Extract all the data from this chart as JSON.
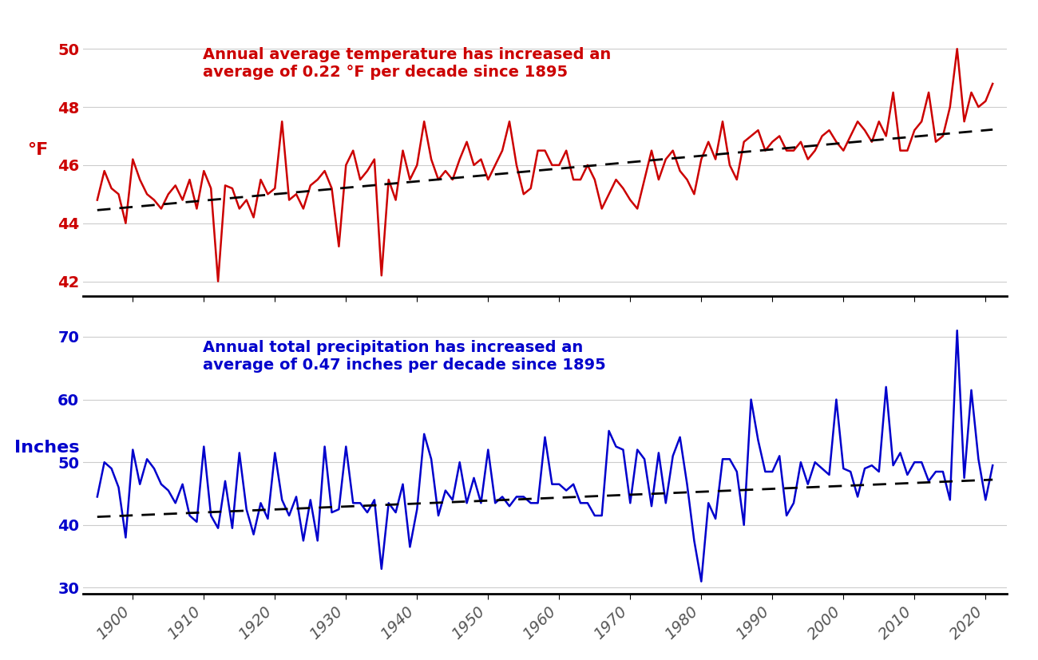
{
  "years": [
    1895,
    1896,
    1897,
    1898,
    1899,
    1900,
    1901,
    1902,
    1903,
    1904,
    1905,
    1906,
    1907,
    1908,
    1909,
    1910,
    1911,
    1912,
    1913,
    1914,
    1915,
    1916,
    1917,
    1918,
    1919,
    1920,
    1921,
    1922,
    1923,
    1924,
    1925,
    1926,
    1927,
    1928,
    1929,
    1930,
    1931,
    1932,
    1933,
    1934,
    1935,
    1936,
    1937,
    1938,
    1939,
    1940,
    1941,
    1942,
    1943,
    1944,
    1945,
    1946,
    1947,
    1948,
    1949,
    1950,
    1951,
    1952,
    1953,
    1954,
    1955,
    1956,
    1957,
    1958,
    1959,
    1960,
    1961,
    1962,
    1963,
    1964,
    1965,
    1966,
    1967,
    1968,
    1969,
    1970,
    1971,
    1972,
    1973,
    1974,
    1975,
    1976,
    1977,
    1978,
    1979,
    1980,
    1981,
    1982,
    1983,
    1984,
    1985,
    1986,
    1987,
    1988,
    1989,
    1990,
    1991,
    1992,
    1993,
    1994,
    1995,
    1996,
    1997,
    1998,
    1999,
    2000,
    2001,
    2002,
    2003,
    2004,
    2005,
    2006,
    2007,
    2008,
    2009,
    2010,
    2011,
    2012,
    2013,
    2014,
    2015,
    2016,
    2017,
    2018,
    2019,
    2020,
    2021
  ],
  "temp": [
    44.8,
    45.8,
    45.2,
    45.0,
    44.0,
    46.2,
    45.5,
    45.0,
    44.8,
    44.5,
    45.0,
    45.3,
    44.8,
    45.5,
    44.5,
    45.8,
    45.2,
    42.0,
    45.3,
    45.2,
    44.5,
    44.8,
    44.2,
    45.5,
    45.0,
    45.2,
    47.5,
    44.8,
    45.0,
    44.5,
    45.3,
    45.5,
    45.8,
    45.2,
    43.2,
    46.0,
    46.5,
    45.5,
    45.8,
    46.2,
    42.2,
    45.5,
    44.8,
    46.5,
    45.5,
    46.0,
    47.5,
    46.2,
    45.5,
    45.8,
    45.5,
    46.2,
    46.8,
    46.0,
    46.2,
    45.5,
    46.0,
    46.5,
    47.5,
    46.0,
    45.0,
    45.2,
    46.5,
    46.5,
    46.0,
    46.0,
    46.5,
    45.5,
    45.5,
    46.0,
    45.5,
    44.5,
    45.0,
    45.5,
    45.2,
    44.8,
    44.5,
    45.5,
    46.5,
    45.5,
    46.2,
    46.5,
    45.8,
    45.5,
    45.0,
    46.2,
    46.8,
    46.2,
    47.5,
    46.0,
    45.5,
    46.8,
    47.0,
    47.2,
    46.5,
    46.8,
    47.0,
    46.5,
    46.5,
    46.8,
    46.2,
    46.5,
    47.0,
    47.2,
    46.8,
    46.5,
    47.0,
    47.5,
    47.2,
    46.8,
    47.5,
    47.0,
    48.5,
    46.5,
    46.5,
    47.2,
    47.5,
    48.5,
    46.8,
    47.0,
    48.0,
    50.0,
    47.5,
    48.5,
    48.0,
    48.2,
    48.8
  ],
  "precip": [
    44.5,
    50.0,
    49.0,
    46.0,
    38.0,
    52.0,
    46.5,
    50.5,
    49.0,
    46.5,
    45.5,
    43.5,
    46.5,
    41.5,
    40.5,
    52.5,
    41.5,
    39.5,
    47.0,
    39.5,
    51.5,
    42.5,
    38.5,
    43.5,
    41.0,
    51.5,
    44.0,
    41.5,
    44.5,
    37.5,
    44.0,
    37.5,
    52.5,
    42.0,
    42.5,
    52.5,
    43.5,
    43.5,
    42.0,
    44.0,
    33.0,
    43.5,
    42.0,
    46.5,
    36.5,
    42.5,
    54.5,
    50.5,
    41.5,
    45.5,
    44.0,
    50.0,
    43.5,
    47.5,
    43.5,
    52.0,
    43.5,
    44.5,
    43.0,
    44.5,
    44.5,
    43.5,
    43.5,
    54.0,
    46.5,
    46.5,
    45.5,
    46.5,
    43.5,
    43.5,
    41.5,
    41.5,
    55.0,
    52.5,
    52.0,
    43.5,
    52.0,
    50.5,
    43.0,
    51.5,
    43.5,
    51.0,
    54.0,
    46.5,
    37.5,
    31.0,
    43.5,
    41.0,
    50.5,
    50.5,
    48.5,
    40.0,
    60.0,
    53.5,
    48.5,
    48.5,
    51.0,
    41.5,
    43.5,
    50.0,
    46.5,
    50.0,
    49.0,
    48.0,
    60.0,
    49.0,
    48.5,
    44.5,
    49.0,
    49.5,
    48.5,
    62.0,
    49.5,
    51.5,
    48.0,
    50.0,
    50.0,
    47.0,
    48.5,
    48.5,
    44.0,
    71.0,
    47.5,
    61.5,
    50.5,
    44.0,
    49.5
  ],
  "temp_color": "#cc0000",
  "precip_color": "#0000cc",
  "trend_color": "#000000",
  "background_color": "#ffffff",
  "temp_annotation": "Annual average temperature has increased an\naverage of 0.22 °F per decade since 1895",
  "precip_annotation": "Annual total precipitation has increased an\naverage of 0.47 inches per decade since 1895",
  "temp_ylabel": "°F",
  "precip_ylabel": "Inches",
  "temp_ylim": [
    41.5,
    51.0
  ],
  "temp_yticks": [
    42,
    44,
    46,
    48,
    50
  ],
  "precip_ylim": [
    29.0,
    73.0
  ],
  "precip_yticks": [
    30,
    40,
    50,
    60,
    70
  ],
  "xlim": [
    1893,
    2023
  ],
  "xticks": [
    1900,
    1910,
    1920,
    1930,
    1940,
    1950,
    1960,
    1970,
    1980,
    1990,
    2000,
    2010,
    2020
  ],
  "temp_trend_slope": 0.022,
  "temp_trend_intercept": 44.45,
  "precip_trend_slope": 0.047,
  "precip_trend_intercept": 41.3,
  "line_width": 1.8,
  "trend_linewidth": 2.0,
  "annotation_fontsize": 14,
  "axis_label_fontsize": 16,
  "tick_fontsize": 14
}
